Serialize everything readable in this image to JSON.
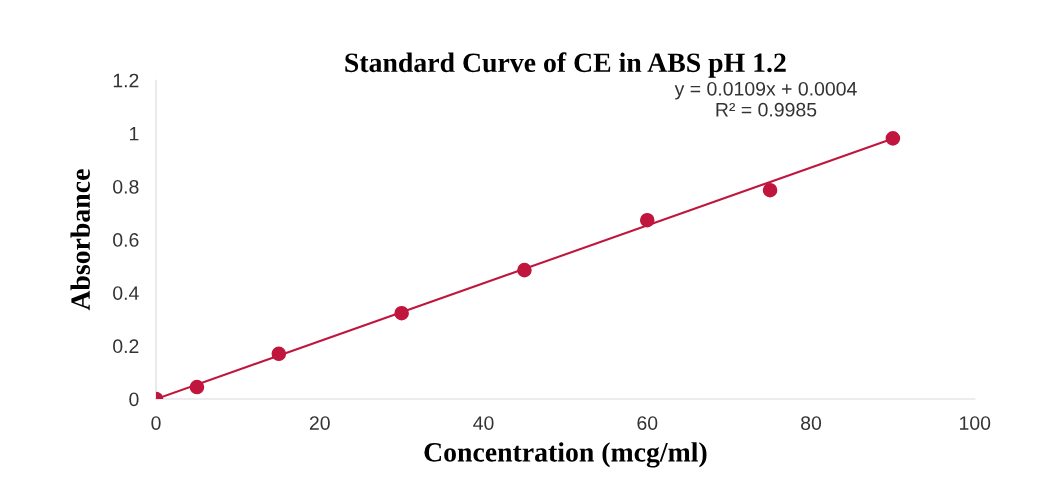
{
  "chart_data": {
    "type": "scatter",
    "title": "Standard Curve of CE in ABS pH 1.2",
    "xlabel": "Concentration (mcg/ml)",
    "ylabel": "Absorbance",
    "x": [
      0,
      5,
      15,
      30,
      45,
      60,
      75,
      90
    ],
    "series": [
      {
        "color": "#c0163e",
        "marker": "circle",
        "values": [
          0,
          0.045,
          0.17,
          0.323,
          0.485,
          0.673,
          0.786,
          0.981
        ]
      },
      {
        "type": "line",
        "color": "#c0163e",
        "x": [
          0,
          90
        ],
        "values": [
          0,
          0.98
        ]
      }
    ],
    "annotations": [
      "y = 0.0109x + 0.0004\nR² = 0.9985"
    ],
    "xlim": [
      0,
      100
    ],
    "xticks": [
      0,
      20,
      40,
      60,
      80,
      100
    ],
    "ylim": [
      0,
      1.2
    ],
    "yticks": [
      0,
      0.2,
      0.4,
      0.6,
      0.8,
      1,
      1.2
    ],
    "grid": false,
    "legend": false
  }
}
